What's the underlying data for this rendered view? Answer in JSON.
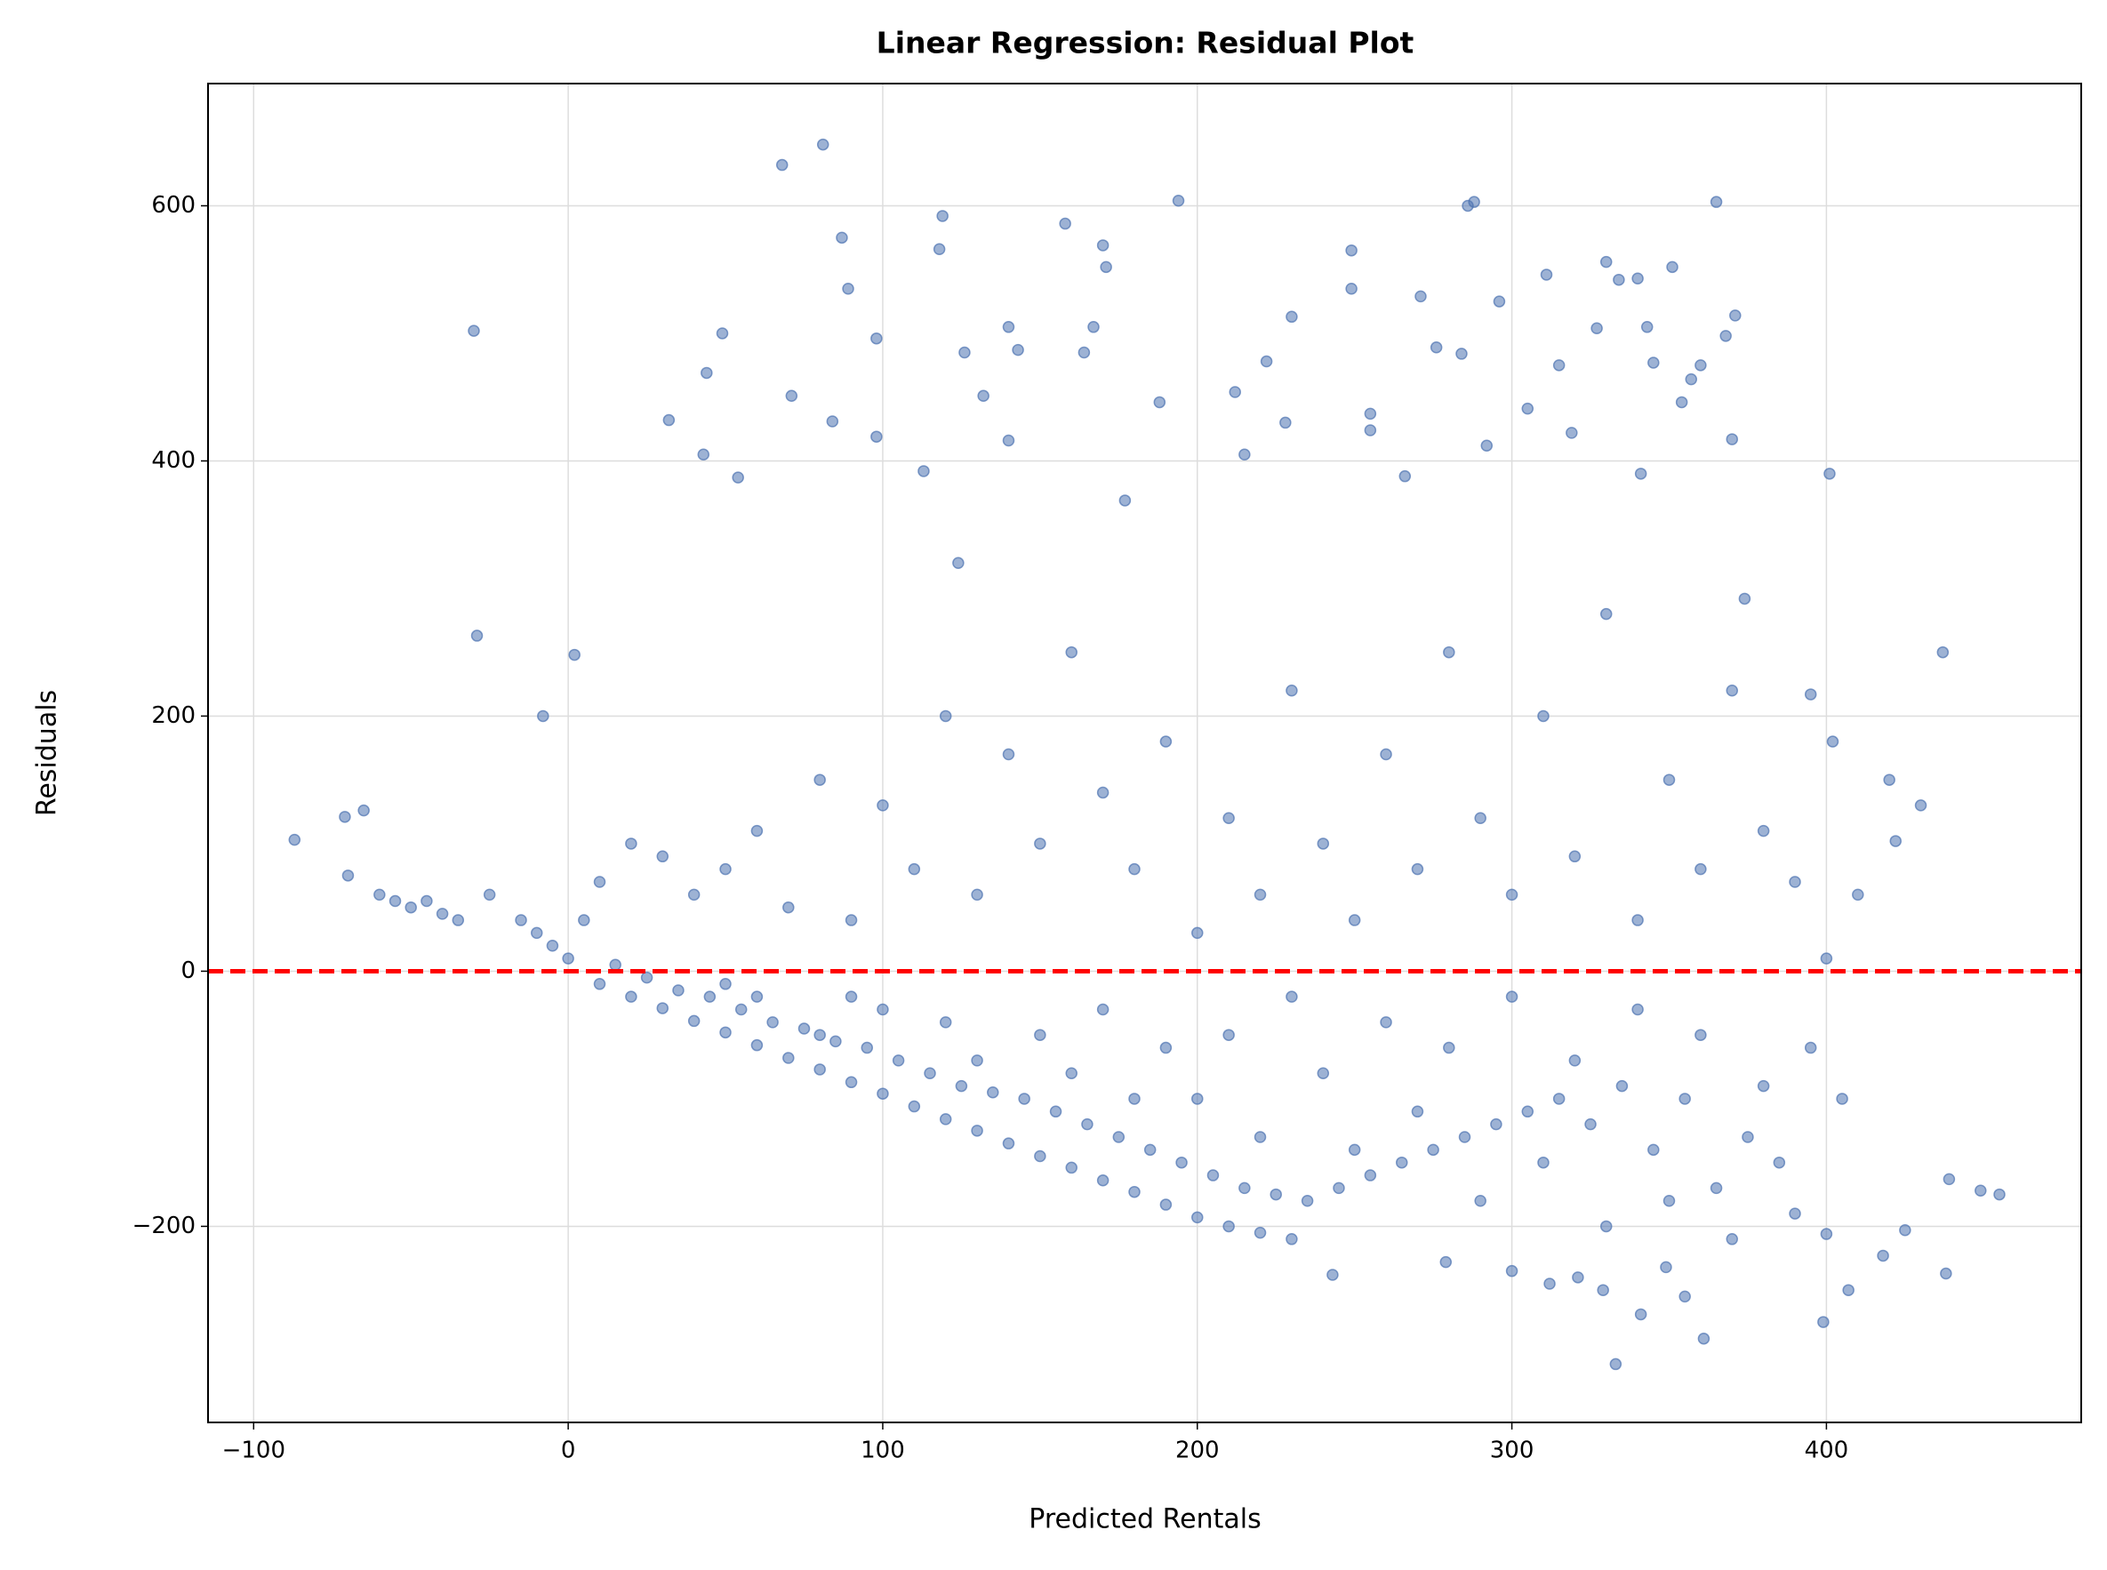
{
  "chart_data": {
    "type": "scatter",
    "title": "Linear Regression: Residual Plot",
    "x_label": "Predicted Rentals",
    "y_label": "Residuals",
    "color": "#4c72b0",
    "grid": true,
    "reference_line": {
      "y": 0,
      "color": "#ff0000"
    },
    "xlim": [
      -114.5,
      481
    ],
    "ylim": [
      -353.7,
      695.8
    ],
    "xticks": [
      {
        "value": -100,
        "label": "−100"
      },
      0,
      100,
      200,
      300,
      400
    ],
    "yticks": [
      {
        "value": -200,
        "label": "−200"
      },
      0,
      200,
      400,
      600
    ],
    "x": [
      -87,
      -71,
      -65,
      -30,
      -29,
      2,
      -8,
      32,
      43,
      44,
      49,
      54,
      68,
      71,
      81,
      84,
      87,
      89,
      98,
      98,
      113,
      118,
      119,
      124,
      126,
      132,
      140,
      140,
      143,
      158,
      164,
      167,
      170,
      171,
      177,
      188,
      194,
      212,
      215,
      222,
      228,
      230,
      249,
      249,
      255,
      255,
      266,
      271,
      276,
      284,
      286,
      288,
      292,
      296,
      305,
      311,
      315,
      319,
      327,
      330,
      334,
      341,
      340,
      343,
      345,
      351,
      354,
      357,
      360,
      365,
      368,
      370,
      371,
      374,
      401,
      437,
      395,
      402,
      422,
      449,
      455,
      439,
      438,
      425,
      418,
      399,
      400,
      407,
      333,
      361,
      341,
      355,
      349,
      321,
      329,
      243,
      279,
      312,
      300,
      10,
      20,
      30,
      40,
      50,
      60,
      70,
      80,
      90,
      100,
      110,
      120,
      130,
      140,
      150,
      160,
      170,
      180,
      190,
      200,
      210,
      220,
      230,
      15,
      25,
      35,
      45,
      55,
      65,
      75,
      85,
      95,
      105,
      115,
      125,
      135,
      145,
      155,
      165,
      175,
      185,
      195,
      205,
      215,
      225,
      235,
      245,
      255,
      265,
      275,
      285,
      295,
      305,
      315,
      325,
      335,
      345,
      355,
      365,
      375,
      385,
      395,
      405,
      -45,
      -40,
      -35,
      -25,
      -15,
      -10,
      -5,
      0,
      5,
      10,
      20,
      30,
      40,
      50,
      60,
      70,
      80,
      90,
      100,
      110,
      120,
      130,
      140,
      150,
      160,
      170,
      180,
      190,
      200,
      210,
      220,
      230,
      240,
      250,
      260,
      270,
      280,
      290,
      300,
      310,
      320,
      330,
      340,
      350,
      360,
      370,
      380,
      390,
      400,
      410,
      420,
      430,
      -70,
      -60,
      -50,
      -55,
      200,
      210,
      220,
      230,
      240,
      250,
      260,
      270,
      280,
      290,
      300,
      310,
      320,
      330,
      340,
      350,
      360,
      370,
      380,
      390,
      150,
      160,
      170,
      180,
      190,
      120,
      130,
      100,
      90,
      80,
      60,
      50
    ],
    "values": [
      103,
      121,
      126,
      502,
      263,
      248,
      200,
      432,
      405,
      469,
      500,
      387,
      632,
      451,
      648,
      431,
      575,
      535,
      496,
      419,
      392,
      566,
      592,
      320,
      485,
      451,
      416,
      505,
      487,
      586,
      485,
      505,
      569,
      552,
      369,
      446,
      604,
      454,
      405,
      478,
      430,
      513,
      535,
      565,
      437,
      424,
      388,
      529,
      489,
      484,
      600,
      603,
      412,
      525,
      441,
      546,
      475,
      422,
      504,
      556,
      542,
      390,
      543,
      505,
      477,
      552,
      446,
      464,
      475,
      603,
      498,
      417,
      514,
      292,
      390,
      250,
      217,
      180,
      102,
      -172,
      -175,
      -163,
      -237,
      -203,
      -223,
      -275,
      -206,
      -250,
      -308,
      -288,
      -269,
      -255,
      -232,
      -240,
      -250,
      -238,
      -228,
      -245,
      -235,
      -10,
      -20,
      -29,
      -39,
      -48,
      -58,
      -68,
      -77,
      -87,
      -96,
      -106,
      -116,
      -125,
      -135,
      -145,
      -154,
      -164,
      -173,
      -183,
      -193,
      -200,
      -205,
      -210,
      5,
      -5,
      -15,
      -20,
      -30,
      -40,
      -45,
      -55,
      -60,
      -70,
      -80,
      -90,
      -95,
      -100,
      -110,
      -120,
      -130,
      -140,
      -150,
      -160,
      -170,
      -175,
      -180,
      -170,
      -160,
      -150,
      -140,
      -130,
      -120,
      -110,
      -100,
      -120,
      -90,
      -140,
      -100,
      -170,
      -130,
      -150,
      -60,
      -100,
      55,
      45,
      40,
      60,
      40,
      30,
      20,
      10,
      40,
      70,
      100,
      90,
      60,
      80,
      110,
      50,
      150,
      40,
      130,
      80,
      200,
      60,
      170,
      100,
      250,
      140,
      80,
      180,
      30,
      120,
      60,
      220,
      100,
      40,
      170,
      80,
      250,
      120,
      60,
      200,
      90,
      280,
      40,
      150,
      80,
      220,
      110,
      70,
      10,
      60,
      150,
      130,
      75,
      60,
      50,
      55,
      -100,
      -50,
      -130,
      -20,
      -80,
      -140,
      -40,
      -110,
      -60,
      -180,
      -20,
      -150,
      -70,
      -200,
      -30,
      -180,
      -50,
      -210,
      -90,
      -190,
      -50,
      -80,
      -30,
      -100,
      -60,
      -40,
      -70,
      -30,
      -20,
      -50,
      -20,
      -10
    ]
  }
}
